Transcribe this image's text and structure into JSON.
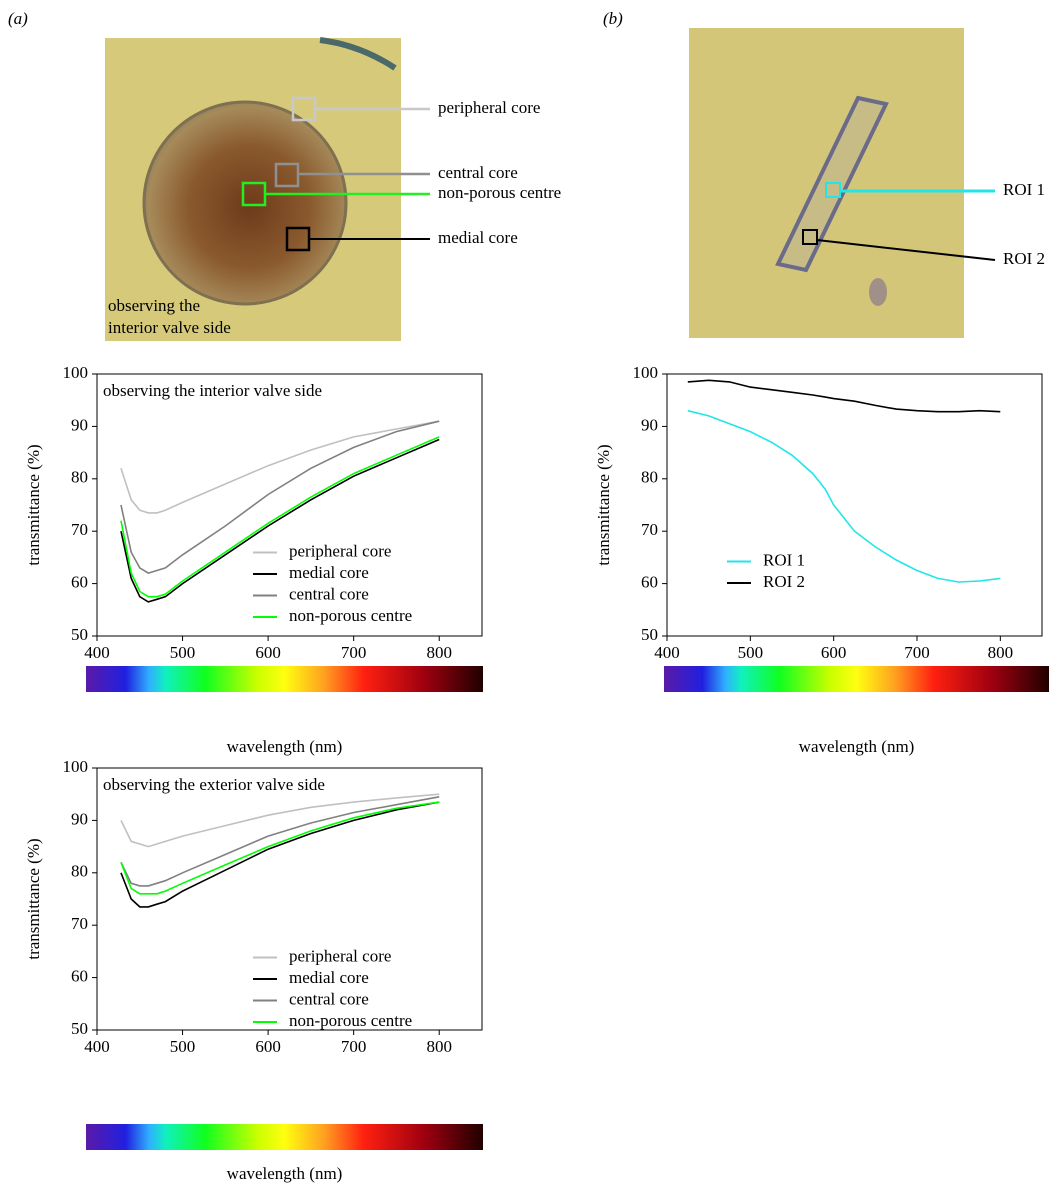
{
  "figure": {
    "panel_a": "(a)",
    "panel_b": "(b)"
  },
  "image_a": {
    "labels": [
      "peripheral core",
      "central core",
      "non-porous centre",
      "medial core"
    ],
    "caption": [
      "observing the",
      "interior valve side"
    ]
  },
  "image_b": {
    "labels": [
      "ROI 1",
      "ROI 2"
    ]
  },
  "chart_data": [
    {
      "type": "line",
      "title": "observing the interior valve side",
      "ylabel": "transmittance (%)",
      "xlabel": "wavelength (nm)",
      "x": [
        428,
        440,
        450,
        460,
        470,
        480,
        500,
        550,
        600,
        650,
        700,
        750,
        800
      ],
      "series": [
        {
          "name": "peripheral core",
          "color": "#c0c0c0",
          "values": [
            82,
            76,
            74,
            73.5,
            73.5,
            74,
            75.5,
            79,
            82.5,
            85.5,
            88,
            89.5,
            91
          ]
        },
        {
          "name": "medial core",
          "color": "#000000",
          "values": [
            70,
            61,
            57.5,
            56.5,
            57,
            57.5,
            60,
            65.5,
            71,
            76,
            80.5,
            84,
            87.5
          ]
        },
        {
          "name": "central core",
          "color": "#808080",
          "values": [
            75,
            66,
            63,
            62,
            62.5,
            63,
            65.5,
            71,
            77,
            82,
            86,
            89,
            91
          ]
        },
        {
          "name": "non-porous centre",
          "color": "#00ff00",
          "values": [
            72,
            62,
            58.5,
            57.5,
            57.5,
            58,
            60.5,
            66,
            71.5,
            76.5,
            81,
            84.5,
            88
          ]
        }
      ],
      "xlim": [
        400,
        850
      ],
      "ylim": [
        50,
        100
      ],
      "xticks": [
        400,
        500,
        600,
        700,
        800
      ],
      "yticks": [
        50,
        60,
        70,
        80,
        90,
        100
      ],
      "legend": "lower right"
    },
    {
      "type": "line",
      "ylabel": "transmittance (%)",
      "xlabel": "wavelength (nm)",
      "x": [
        425,
        450,
        475,
        500,
        525,
        550,
        575,
        590,
        600,
        625,
        650,
        675,
        700,
        725,
        750,
        775,
        800
      ],
      "series": [
        {
          "name": "ROI 1",
          "color": "#22e5e8",
          "values": [
            93,
            92,
            90.5,
            89,
            87,
            84.5,
            81,
            78,
            75,
            70,
            67,
            64.5,
            62.5,
            61,
            60.3,
            60.5,
            61
          ]
        },
        {
          "name": "ROI 2",
          "color": "#000000",
          "values": [
            98.5,
            98.8,
            98.5,
            97.5,
            97,
            96.5,
            96,
            95.6,
            95.3,
            94.8,
            94,
            93.3,
            93,
            92.8,
            92.8,
            93,
            92.8
          ]
        }
      ],
      "xlim": [
        400,
        850
      ],
      "ylim": [
        50,
        100
      ],
      "xticks": [
        400,
        500,
        600,
        700,
        800
      ],
      "yticks": [
        50,
        60,
        70,
        80,
        90,
        100
      ],
      "legend": "lower left"
    },
    {
      "type": "line",
      "title": "observing the exterior valve side",
      "ylabel": "transmittance (%)",
      "xlabel": "wavelength (nm)",
      "x": [
        428,
        440,
        450,
        460,
        470,
        480,
        500,
        550,
        600,
        650,
        700,
        750,
        800
      ],
      "series": [
        {
          "name": "peripheral core",
          "color": "#c0c0c0",
          "values": [
            90,
            86,
            85.5,
            85,
            85.5,
            86,
            87,
            89,
            91,
            92.5,
            93.5,
            94.3,
            95
          ]
        },
        {
          "name": "medial core",
          "color": "#000000",
          "values": [
            80,
            75,
            73.5,
            73.5,
            74,
            74.5,
            76.5,
            80.5,
            84.5,
            87.5,
            90,
            92,
            93.5
          ]
        },
        {
          "name": "central core",
          "color": "#808080",
          "values": [
            82,
            78,
            77.5,
            77.5,
            78,
            78.5,
            80,
            83.5,
            87,
            89.5,
            91.5,
            93,
            94.5
          ]
        },
        {
          "name": "non-porous centre",
          "color": "#00ff00",
          "values": [
            82,
            77,
            76,
            76,
            76,
            76.5,
            78,
            81.5,
            85,
            88,
            90.5,
            92.3,
            93.5
          ]
        }
      ],
      "xlim": [
        400,
        850
      ],
      "ylim": [
        50,
        100
      ],
      "xticks": [
        400,
        500,
        600,
        700,
        800
      ],
      "yticks": [
        50,
        60,
        70,
        80,
        90,
        100
      ],
      "legend": "lower right"
    }
  ]
}
